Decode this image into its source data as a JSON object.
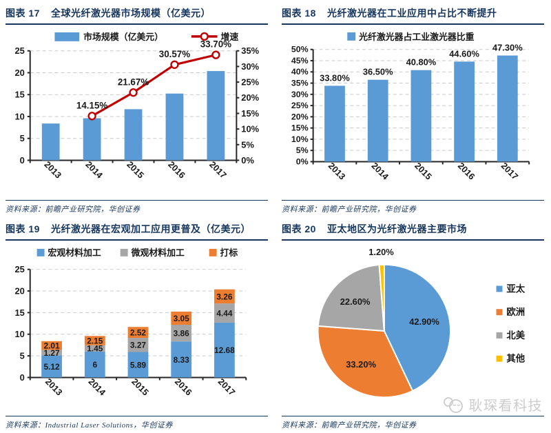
{
  "page": {
    "background": "#FFFFFF"
  },
  "colors": {
    "title_navy": "#17365D",
    "rule_navy": "#17365D",
    "bar_blue": "#5B9BD5",
    "line_red": "#C00000",
    "series_gray": "#A6A6A6",
    "series_orange": "#ED7D31",
    "series_yellow": "#FFC000",
    "grid_gray": "#C9C9C9",
    "axis_black": "#262626",
    "label_black": "#1A1A1A",
    "watermark_gray": "#CCCCCC"
  },
  "panels": [
    {
      "fig_label": "图表 17",
      "title": "全球光纤激光器市场规模（亿美元）",
      "source": "资料来源：前瞻产业研究院，华创证券"
    },
    {
      "fig_label": "图表 18",
      "title": "光纤激光器在工业应用中占比不断提升",
      "source": "资料来源：前瞻产业研究院，华创证券"
    },
    {
      "fig_label": "图表 19",
      "title": "光纤激光器在宏观加工应用更普及（亿美元）",
      "source": "资料来源：Industrial Laser Solutions，华创证券"
    },
    {
      "fig_label": "图表 20",
      "title": "亚太地区为光纤激光器主要市场",
      "source": "资料来源：前瞻产业研究院，华创证券"
    }
  ],
  "watermark": {
    "text": "耿琛看科技"
  },
  "chart_data": [
    {
      "type": "bar+line",
      "title": "全球光纤激光器市场规模（亿美元）",
      "categories": [
        "2013",
        "2014",
        "2015",
        "2016",
        "2017"
      ],
      "series": [
        {
          "name": "市场规模（亿美元）",
          "type": "bar",
          "axis": "left",
          "color": "#5B9BD5",
          "values": [
            8.4,
            9.6,
            11.67,
            15.24,
            20.38
          ]
        },
        {
          "name": "增速",
          "type": "line",
          "axis": "right",
          "color": "#C00000",
          "values": [
            null,
            14.15,
            21.67,
            30.57,
            33.7
          ],
          "point_labels": [
            "",
            "14.15%",
            "21.67%",
            "30.57%",
            "33.70%"
          ]
        }
      ],
      "left_axis": {
        "min": 0,
        "max": 25,
        "step": 5,
        "suffix": ""
      },
      "right_axis": {
        "min": 0,
        "max": 35,
        "step": 5,
        "suffix": "%"
      },
      "legend_position": "top",
      "grid": "dashed"
    },
    {
      "type": "bar",
      "title": "光纤激光器在工业应用中占比不断提升",
      "categories": [
        "2013",
        "2014",
        "2015",
        "2016",
        "2017"
      ],
      "series": [
        {
          "name": "光纤激光器占工业激光器比重",
          "color": "#5B9BD5",
          "values": [
            33.8,
            36.5,
            40.8,
            44.6,
            47.3
          ],
          "point_labels": [
            "33.80%",
            "36.50%",
            "40.80%",
            "44.60%",
            "47.30%"
          ]
        }
      ],
      "y_axis": {
        "min": 0,
        "max": 50,
        "step": 5,
        "suffix": "%"
      },
      "legend_position": "top",
      "grid": "dashed"
    },
    {
      "type": "stacked-bar",
      "title": "光纤激光器在宏观加工应用更普及（亿美元）",
      "categories": [
        "2013",
        "2014",
        "2015",
        "2016",
        "2017"
      ],
      "series": [
        {
          "name": "宏观材料加工",
          "color": "#5B9BD5",
          "values": [
            5.12,
            6,
            5.89,
            8.33,
            12.68
          ],
          "point_labels": [
            "5.12",
            "6",
            "5.89",
            "8.33",
            "12.68"
          ]
        },
        {
          "name": "微观材料加工",
          "color": "#A6A6A6",
          "values": [
            1.27,
            1.45,
            3.27,
            3.86,
            4.44
          ],
          "point_labels": [
            "1.27",
            "1.45",
            "3.27",
            "3.86",
            "4.44"
          ]
        },
        {
          "name": "打标",
          "color": "#ED7D31",
          "values": [
            2.01,
            2.15,
            2.52,
            3.05,
            3.26
          ],
          "point_labels": [
            "2.01",
            "2.15",
            "2.52",
            "3.05",
            "3.26"
          ]
        }
      ],
      "y_axis": {
        "min": 0,
        "max": 25,
        "step": 5,
        "suffix": ""
      },
      "legend_position": "top",
      "grid": "dashed"
    },
    {
      "type": "pie",
      "title": "亚太地区为光纤激光器主要市场",
      "slices": [
        {
          "name": "亚太",
          "value": 42.9,
          "label": "42.90%",
          "color": "#5B9BD5"
        },
        {
          "name": "欧洲",
          "value": 33.2,
          "label": "33.20%",
          "color": "#ED7D31"
        },
        {
          "name": "北美",
          "value": 22.6,
          "label": "22.60%",
          "color": "#A6A6A6"
        },
        {
          "name": "其他",
          "value": 1.2,
          "label": "1.20%",
          "color": "#FFC000"
        }
      ],
      "legend_position": "right",
      "start_angle_deg": 0,
      "direction": "clockwise"
    }
  ]
}
